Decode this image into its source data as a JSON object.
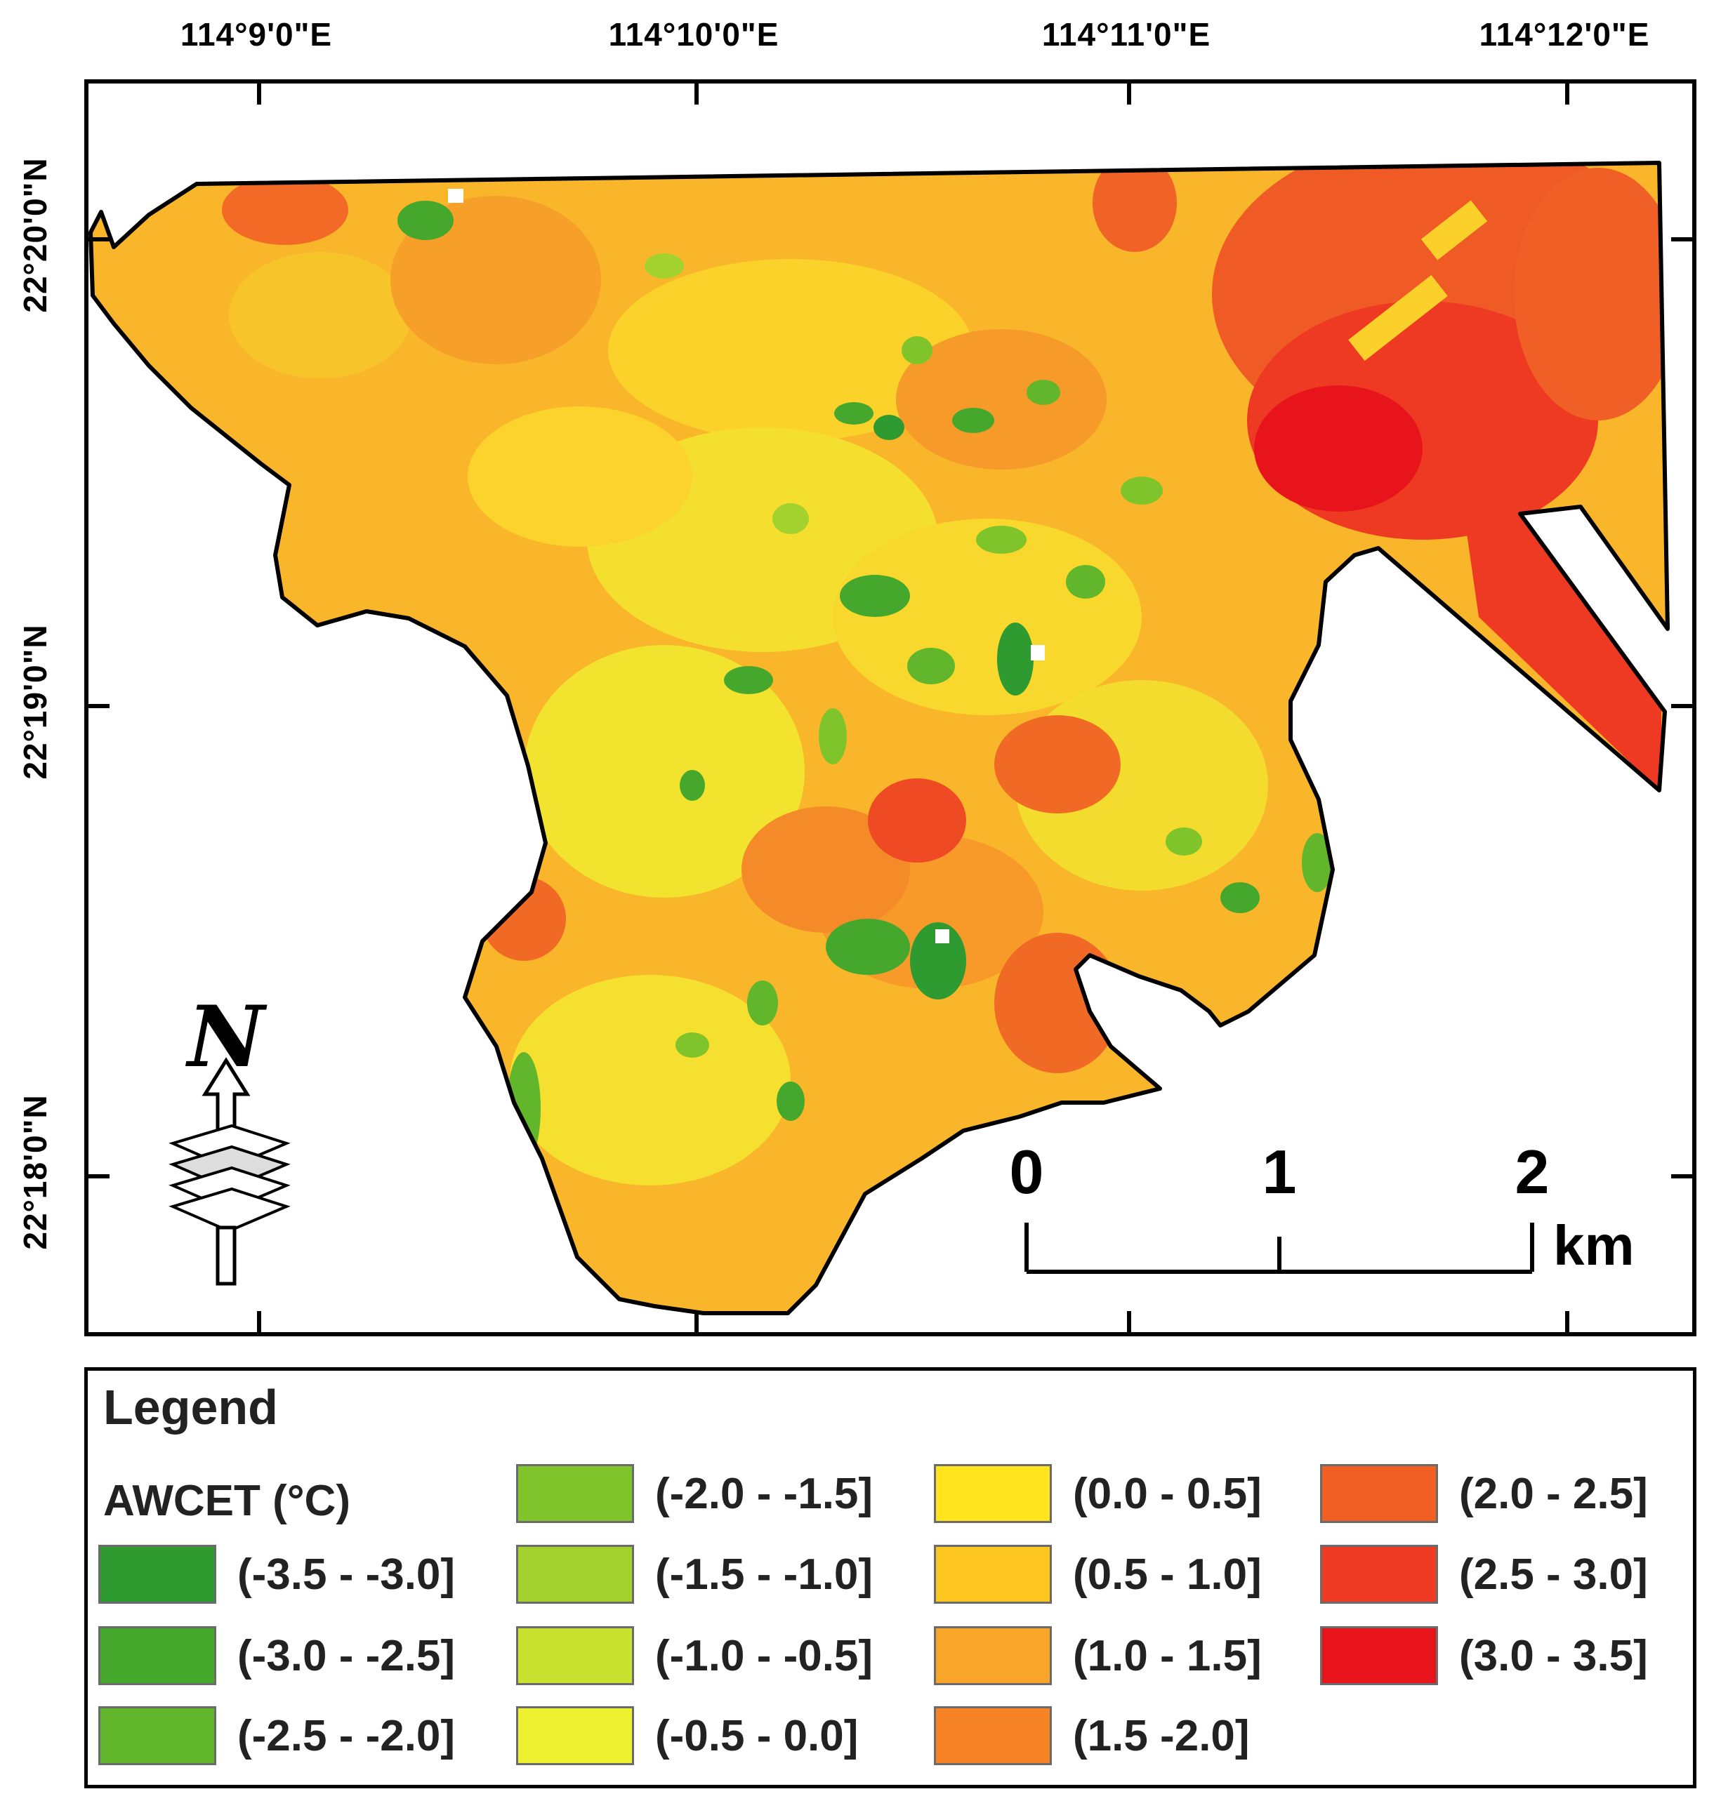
{
  "map": {
    "lon_labels": [
      "114°9'0\"E",
      "114°10'0\"E",
      "114°11'0\"E",
      "114°12'0\"E"
    ],
    "lat_labels": [
      "22°20'0\"N",
      "22°19'0\"N",
      "22°18'0\"N"
    ],
    "north_arrow": {
      "letter": "N",
      "icon": "north-arrow-icon"
    },
    "scale_bar": {
      "ticks": [
        "0",
        "1",
        "2"
      ],
      "unit": "km"
    }
  },
  "legend": {
    "title": "Legend",
    "variable": "AWCET (°C)",
    "classes": [
      {
        "label": "(-3.5 - -3.0]",
        "color": "#2f9a2f"
      },
      {
        "label": "(-3.0 - -2.5]",
        "color": "#45a82d"
      },
      {
        "label": "(-2.5 - -2.0]",
        "color": "#62b62b"
      },
      {
        "label": "(-2.0 - -1.5]",
        "color": "#80c42b"
      },
      {
        "label": "(-1.5 - -1.0]",
        "color": "#a3d22e"
      },
      {
        "label": "(-1.0 - -0.5]",
        "color": "#c9e230"
      },
      {
        "label": "(-0.5 - 0.0]",
        "color": "#edf130"
      },
      {
        "label": "(0.0 - 0.5]",
        "color": "#ffe41e"
      },
      {
        "label": "(0.5 - 1.0]",
        "color": "#fcc520"
      },
      {
        "label": "(1.0 - 1.5]",
        "color": "#f9a52a"
      },
      {
        "label": "(1.5 -2.0]",
        "color": "#f68426"
      },
      {
        "label": "(2.0 - 2.5]",
        "color": "#f15f25"
      },
      {
        "label": "(2.5 - 3.0]",
        "color": "#ee3a22"
      },
      {
        "label": "(3.0 - 3.5]",
        "color": "#e8141b"
      }
    ]
  }
}
